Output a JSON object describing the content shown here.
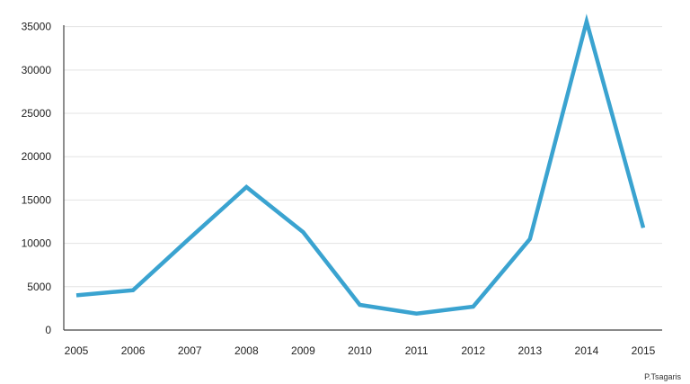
{
  "chart_data": {
    "type": "line",
    "categories": [
      "2005",
      "2006",
      "2007",
      "2008",
      "2009",
      "2010",
      "2011",
      "2012",
      "2013",
      "2014",
      "2015"
    ],
    "series": [
      {
        "values": [
          4000,
          4600,
          10600,
          16500,
          11300,
          2900,
          1900,
          2700,
          10500,
          35600,
          11800
        ],
        "color": "#3aa3d0"
      }
    ],
    "yticks": [
      0,
      5000,
      10000,
      15000,
      20000,
      25000,
      30000,
      35000
    ],
    "ylim": [
      0,
      36000
    ],
    "grid": true,
    "legend": "none"
  },
  "credit": "P.Tsagaris"
}
